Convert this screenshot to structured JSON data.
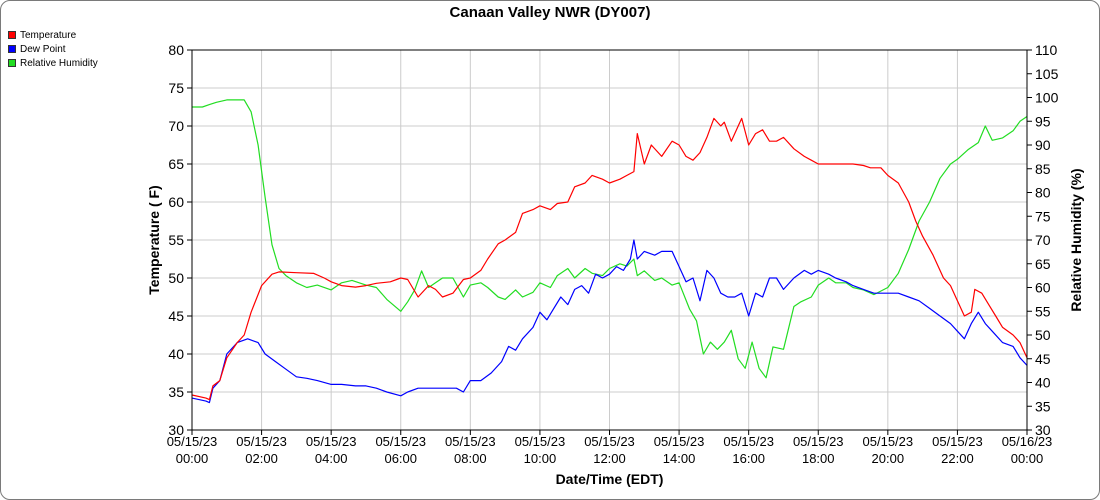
{
  "chart_data": {
    "type": "line",
    "title": "Canaan Valley NWR (DY007)",
    "xlabel": "Date/Time (EDT)",
    "ylabel_left": "Temperature ( F)",
    "ylabel_right": "Relative Humidity (%)",
    "ylim_left": [
      30,
      80
    ],
    "ylim_right": [
      30,
      110
    ],
    "xlim_hours": [
      0,
      24
    ],
    "left_ticks": [
      "30",
      "35",
      "40",
      "45",
      "50",
      "55",
      "60",
      "65",
      "70",
      "75",
      "80"
    ],
    "right_ticks": [
      "30",
      "35",
      "40",
      "45",
      "50",
      "55",
      "60",
      "65",
      "70",
      "75",
      "80",
      "85",
      "90",
      "95",
      "100",
      "105",
      "110"
    ],
    "x_ticks": [
      {
        "hour": 0,
        "date": "05/15/23",
        "time": "00:00"
      },
      {
        "hour": 2,
        "date": "05/15/23",
        "time": "02:00"
      },
      {
        "hour": 4,
        "date": "05/15/23",
        "time": "04:00"
      },
      {
        "hour": 6,
        "date": "05/15/23",
        "time": "06:00"
      },
      {
        "hour": 8,
        "date": "05/15/23",
        "time": "08:00"
      },
      {
        "hour": 10,
        "date": "05/15/23",
        "time": "10:00"
      },
      {
        "hour": 12,
        "date": "05/15/23",
        "time": "12:00"
      },
      {
        "hour": 14,
        "date": "05/15/23",
        "time": "14:00"
      },
      {
        "hour": 16,
        "date": "05/15/23",
        "time": "16:00"
      },
      {
        "hour": 18,
        "date": "05/15/23",
        "time": "18:00"
      },
      {
        "hour": 20,
        "date": "05/15/23",
        "time": "20:00"
      },
      {
        "hour": 22,
        "date": "05/15/23",
        "time": "22:00"
      },
      {
        "hour": 24,
        "date": "05/16/23",
        "time": "00:00"
      }
    ],
    "grid": true,
    "legend_position": "top-left",
    "series": [
      {
        "name": "Temperature",
        "axis": "left",
        "color": "#ff0000",
        "points": [
          [
            0,
            34.6
          ],
          [
            0.4,
            34.2
          ],
          [
            0.5,
            34.0
          ],
          [
            0.6,
            35.8
          ],
          [
            0.8,
            36.5
          ],
          [
            1.0,
            39.5
          ],
          [
            1.3,
            41.5
          ],
          [
            1.5,
            42.5
          ],
          [
            1.7,
            45.5
          ],
          [
            2.0,
            49.0
          ],
          [
            2.3,
            50.5
          ],
          [
            2.5,
            50.8
          ],
          [
            3.0,
            50.7
          ],
          [
            3.5,
            50.6
          ],
          [
            3.8,
            50.0
          ],
          [
            4.0,
            49.5
          ],
          [
            4.3,
            49.0
          ],
          [
            4.7,
            48.8
          ],
          [
            5.0,
            49.0
          ],
          [
            5.3,
            49.3
          ],
          [
            5.7,
            49.5
          ],
          [
            6.0,
            50.0
          ],
          [
            6.2,
            49.8
          ],
          [
            6.5,
            47.5
          ],
          [
            6.8,
            49.0
          ],
          [
            7.0,
            48.5
          ],
          [
            7.2,
            47.5
          ],
          [
            7.5,
            48.0
          ],
          [
            7.8,
            49.8
          ],
          [
            8.0,
            50.0
          ],
          [
            8.3,
            51.0
          ],
          [
            8.5,
            52.5
          ],
          [
            8.8,
            54.5
          ],
          [
            9.0,
            55.0
          ],
          [
            9.3,
            56.0
          ],
          [
            9.5,
            58.5
          ],
          [
            9.8,
            59.0
          ],
          [
            10.0,
            59.5
          ],
          [
            10.3,
            59.0
          ],
          [
            10.5,
            59.8
          ],
          [
            10.8,
            60.0
          ],
          [
            11.0,
            62.0
          ],
          [
            11.3,
            62.5
          ],
          [
            11.5,
            63.5
          ],
          [
            11.8,
            63.0
          ],
          [
            12.0,
            62.5
          ],
          [
            12.3,
            63.0
          ],
          [
            12.5,
            63.5
          ],
          [
            12.7,
            64.0
          ],
          [
            12.8,
            69.0
          ],
          [
            13.0,
            65.0
          ],
          [
            13.2,
            67.5
          ],
          [
            13.5,
            66.0
          ],
          [
            13.8,
            68.0
          ],
          [
            14.0,
            67.5
          ],
          [
            14.2,
            66.0
          ],
          [
            14.4,
            65.5
          ],
          [
            14.6,
            66.5
          ],
          [
            14.8,
            68.5
          ],
          [
            15.0,
            71.0
          ],
          [
            15.2,
            70.0
          ],
          [
            15.3,
            70.5
          ],
          [
            15.5,
            68.0
          ],
          [
            15.7,
            70.0
          ],
          [
            15.8,
            71.0
          ],
          [
            16.0,
            67.5
          ],
          [
            16.2,
            69.0
          ],
          [
            16.4,
            69.5
          ],
          [
            16.6,
            68.0
          ],
          [
            16.8,
            68.0
          ],
          [
            17.0,
            68.5
          ],
          [
            17.3,
            67.0
          ],
          [
            17.6,
            66.0
          ],
          [
            17.8,
            65.5
          ],
          [
            18.0,
            65.0
          ],
          [
            18.3,
            65.0
          ],
          [
            18.6,
            65.0
          ],
          [
            19.0,
            65.0
          ],
          [
            19.3,
            64.8
          ],
          [
            19.5,
            64.5
          ],
          [
            19.8,
            64.5
          ],
          [
            20.0,
            63.5
          ],
          [
            20.3,
            62.5
          ],
          [
            20.6,
            60.0
          ],
          [
            20.8,
            57.5
          ],
          [
            21.0,
            55.5
          ],
          [
            21.3,
            53.0
          ],
          [
            21.6,
            50.0
          ],
          [
            21.8,
            49.0
          ],
          [
            22.0,
            47.0
          ],
          [
            22.2,
            45.0
          ],
          [
            22.4,
            45.5
          ],
          [
            22.5,
            48.5
          ],
          [
            22.7,
            48.0
          ],
          [
            22.9,
            46.5
          ],
          [
            23.1,
            45.0
          ],
          [
            23.3,
            43.5
          ],
          [
            23.6,
            42.5
          ],
          [
            23.8,
            41.5
          ],
          [
            24.0,
            39.5
          ]
        ]
      },
      {
        "name": "Dew Point",
        "axis": "left",
        "color": "#0000ff",
        "points": [
          [
            0,
            34.2
          ],
          [
            0.4,
            33.8
          ],
          [
            0.5,
            33.6
          ],
          [
            0.6,
            35.5
          ],
          [
            0.8,
            36.5
          ],
          [
            1.0,
            40.0
          ],
          [
            1.3,
            41.5
          ],
          [
            1.6,
            42.0
          ],
          [
            1.9,
            41.5
          ],
          [
            2.1,
            40.0
          ],
          [
            2.4,
            39.0
          ],
          [
            2.7,
            38.0
          ],
          [
            3.0,
            37.0
          ],
          [
            3.3,
            36.8
          ],
          [
            3.6,
            36.5
          ],
          [
            4.0,
            36.0
          ],
          [
            4.3,
            36.0
          ],
          [
            4.7,
            35.8
          ],
          [
            5.0,
            35.8
          ],
          [
            5.3,
            35.5
          ],
          [
            5.6,
            35.0
          ],
          [
            6.0,
            34.5
          ],
          [
            6.2,
            35.0
          ],
          [
            6.5,
            35.5
          ],
          [
            6.8,
            35.5
          ],
          [
            7.0,
            35.5
          ],
          [
            7.3,
            35.5
          ],
          [
            7.6,
            35.5
          ],
          [
            7.8,
            35.0
          ],
          [
            8.0,
            36.5
          ],
          [
            8.3,
            36.5
          ],
          [
            8.6,
            37.5
          ],
          [
            8.9,
            39.0
          ],
          [
            9.1,
            41.0
          ],
          [
            9.3,
            40.5
          ],
          [
            9.5,
            42.0
          ],
          [
            9.8,
            43.5
          ],
          [
            10.0,
            45.5
          ],
          [
            10.2,
            44.5
          ],
          [
            10.4,
            46.0
          ],
          [
            10.6,
            47.5
          ],
          [
            10.8,
            46.5
          ],
          [
            11.0,
            48.5
          ],
          [
            11.2,
            49.0
          ],
          [
            11.4,
            48.0
          ],
          [
            11.6,
            50.5
          ],
          [
            11.8,
            50.0
          ],
          [
            12.0,
            50.5
          ],
          [
            12.2,
            51.5
          ],
          [
            12.4,
            51.0
          ],
          [
            12.6,
            52.5
          ],
          [
            12.7,
            55.0
          ],
          [
            12.8,
            52.5
          ],
          [
            13.0,
            53.5
          ],
          [
            13.3,
            53.0
          ],
          [
            13.5,
            53.5
          ],
          [
            13.8,
            53.5
          ],
          [
            14.0,
            51.5
          ],
          [
            14.2,
            49.5
          ],
          [
            14.4,
            50.0
          ],
          [
            14.6,
            47.0
          ],
          [
            14.8,
            51.0
          ],
          [
            15.0,
            50.0
          ],
          [
            15.2,
            48.0
          ],
          [
            15.4,
            47.5
          ],
          [
            15.6,
            47.5
          ],
          [
            15.8,
            48.0
          ],
          [
            16.0,
            45.0
          ],
          [
            16.2,
            48.0
          ],
          [
            16.4,
            47.5
          ],
          [
            16.6,
            50.0
          ],
          [
            16.8,
            50.0
          ],
          [
            17.0,
            48.5
          ],
          [
            17.3,
            50.0
          ],
          [
            17.6,
            51.0
          ],
          [
            17.8,
            50.5
          ],
          [
            18.0,
            51.0
          ],
          [
            18.3,
            50.5
          ],
          [
            18.5,
            50.0
          ],
          [
            18.8,
            49.5
          ],
          [
            19.0,
            49.0
          ],
          [
            19.3,
            48.5
          ],
          [
            19.6,
            48.0
          ],
          [
            20.0,
            48.0
          ],
          [
            20.3,
            48.0
          ],
          [
            20.6,
            47.5
          ],
          [
            20.9,
            47.0
          ],
          [
            21.2,
            46.0
          ],
          [
            21.5,
            45.0
          ],
          [
            21.8,
            44.0
          ],
          [
            22.0,
            43.0
          ],
          [
            22.2,
            42.0
          ],
          [
            22.4,
            44.0
          ],
          [
            22.6,
            45.5
          ],
          [
            22.8,
            44.0
          ],
          [
            23.0,
            43.0
          ],
          [
            23.3,
            41.5
          ],
          [
            23.6,
            41.0
          ],
          [
            23.8,
            39.5
          ],
          [
            24.0,
            38.5
          ]
        ]
      },
      {
        "name": "Relative Humidity",
        "axis": "right",
        "color": "#22dd22",
        "points": [
          [
            0,
            98
          ],
          [
            0.3,
            98
          ],
          [
            0.5,
            98.5
          ],
          [
            0.7,
            99
          ],
          [
            1.0,
            99.5
          ],
          [
            1.3,
            99.5
          ],
          [
            1.5,
            99.5
          ],
          [
            1.7,
            97
          ],
          [
            1.9,
            90
          ],
          [
            2.1,
            79
          ],
          [
            2.3,
            69
          ],
          [
            2.5,
            64
          ],
          [
            2.7,
            62.5
          ],
          [
            3.0,
            61
          ],
          [
            3.3,
            60
          ],
          [
            3.6,
            60.5
          ],
          [
            4.0,
            59.5
          ],
          [
            4.3,
            61
          ],
          [
            4.6,
            61.5
          ],
          [
            5.0,
            60.5
          ],
          [
            5.3,
            60
          ],
          [
            5.6,
            57.5
          ],
          [
            6.0,
            55
          ],
          [
            6.2,
            57
          ],
          [
            6.4,
            59.5
          ],
          [
            6.6,
            63.5
          ],
          [
            6.8,
            60
          ],
          [
            7.0,
            61
          ],
          [
            7.2,
            62
          ],
          [
            7.5,
            62
          ],
          [
            7.8,
            58
          ],
          [
            8.0,
            60.5
          ],
          [
            8.3,
            61
          ],
          [
            8.5,
            60
          ],
          [
            8.8,
            58
          ],
          [
            9.0,
            57.5
          ],
          [
            9.3,
            59.5
          ],
          [
            9.5,
            58
          ],
          [
            9.8,
            59
          ],
          [
            10.0,
            61
          ],
          [
            10.3,
            60
          ],
          [
            10.5,
            62.5
          ],
          [
            10.8,
            64
          ],
          [
            11.0,
            62
          ],
          [
            11.3,
            64
          ],
          [
            11.5,
            63
          ],
          [
            11.8,
            62.5
          ],
          [
            12.0,
            64
          ],
          [
            12.3,
            65
          ],
          [
            12.5,
            64.5
          ],
          [
            12.7,
            66
          ],
          [
            12.8,
            62.5
          ],
          [
            13.0,
            63.5
          ],
          [
            13.3,
            61.5
          ],
          [
            13.5,
            62
          ],
          [
            13.8,
            60.5
          ],
          [
            14.0,
            61
          ],
          [
            14.3,
            55.5
          ],
          [
            14.5,
            53
          ],
          [
            14.7,
            46
          ],
          [
            14.9,
            48.5
          ],
          [
            15.1,
            47
          ],
          [
            15.3,
            48.5
          ],
          [
            15.5,
            51
          ],
          [
            15.7,
            45
          ],
          [
            15.9,
            43
          ],
          [
            16.1,
            48.5
          ],
          [
            16.3,
            43
          ],
          [
            16.5,
            41
          ],
          [
            16.7,
            47.5
          ],
          [
            17.0,
            47
          ],
          [
            17.3,
            56
          ],
          [
            17.5,
            57
          ],
          [
            17.8,
            58
          ],
          [
            18.0,
            60.5
          ],
          [
            18.3,
            62
          ],
          [
            18.5,
            61
          ],
          [
            18.8,
            61
          ],
          [
            19.0,
            60
          ],
          [
            19.3,
            59.5
          ],
          [
            19.6,
            58.5
          ],
          [
            20.0,
            60
          ],
          [
            20.3,
            63
          ],
          [
            20.6,
            68
          ],
          [
            20.9,
            74
          ],
          [
            21.2,
            78
          ],
          [
            21.5,
            83
          ],
          [
            21.8,
            86
          ],
          [
            22.0,
            87
          ],
          [
            22.3,
            89
          ],
          [
            22.6,
            90.5
          ],
          [
            22.8,
            94
          ],
          [
            23.0,
            91
          ],
          [
            23.3,
            91.5
          ],
          [
            23.6,
            93
          ],
          [
            23.8,
            95
          ],
          [
            24.0,
            96
          ]
        ]
      }
    ]
  }
}
